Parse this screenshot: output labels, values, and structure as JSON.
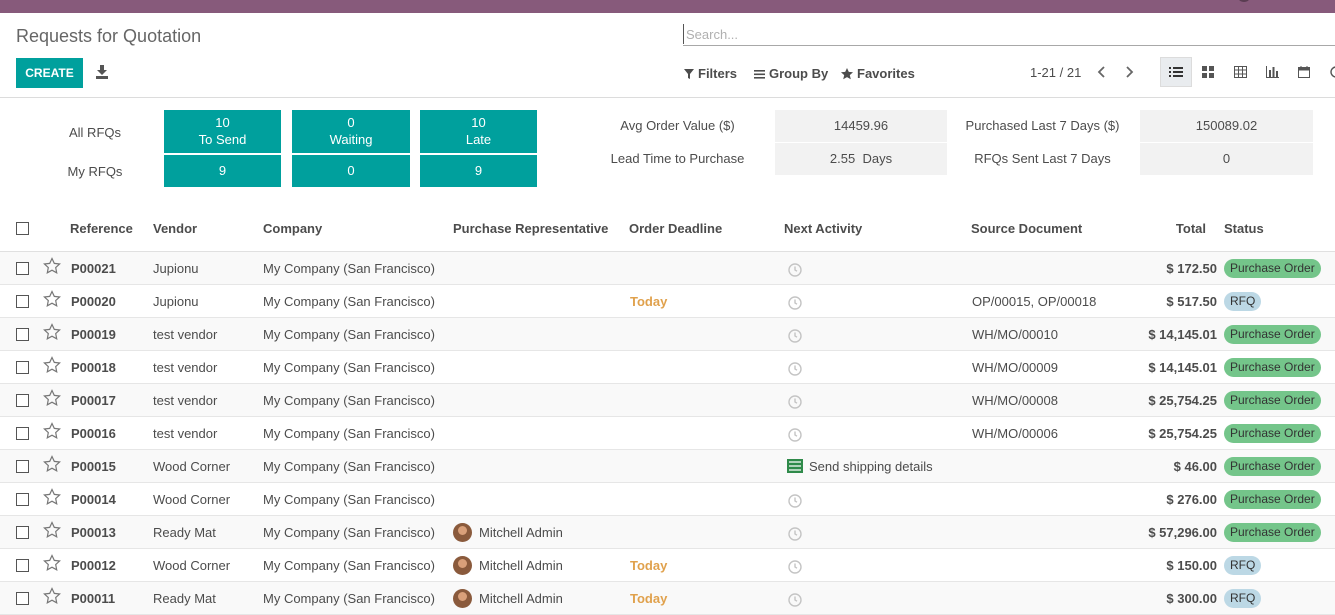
{
  "page": {
    "title": "Requests for Quotation"
  },
  "colors": {
    "brand": "#875a7b",
    "primary": "#00a09d",
    "today": "#e0a14c",
    "po_badge": "#74c58a",
    "rfq_badge": "#bcd8e5"
  },
  "search": {
    "placeholder": "Search..."
  },
  "toolbar": {
    "create_label": "CREATE",
    "filters_label": "Filters",
    "groupby_label": "Group By",
    "favorites_label": "Favorites"
  },
  "pager": {
    "value": "1-21 / 21"
  },
  "views": [
    "list-view-icon",
    "kanban-view-icon",
    "pivot-view-icon",
    "graph-view-icon",
    "calendar-view-icon",
    "activity-view-icon"
  ],
  "dashboard": {
    "all_rfqs_label": "All RFQs",
    "my_rfqs_label": "My RFQs",
    "tiles": [
      {
        "all": "10",
        "label": "To Send",
        "mine": "9"
      },
      {
        "all": "0",
        "label": "Waiting",
        "mine": "0"
      },
      {
        "all": "10",
        "label": "Late",
        "mine": "9"
      }
    ],
    "stats": {
      "avg_order_label": "Avg Order Value ($)",
      "avg_order_value": "14459.96",
      "lead_time_label": "Lead Time to Purchase",
      "lead_time_value": "2.55  Days",
      "purchased_label": "Purchased Last 7 Days ($)",
      "purchased_value": "150089.02",
      "rfqs_sent_label": "RFQs Sent Last 7 Days",
      "rfqs_sent_value": "0"
    }
  },
  "table": {
    "columns": {
      "reference": "Reference",
      "vendor": "Vendor",
      "company": "Company",
      "rep": "Purchase Representative",
      "deadline": "Order Deadline",
      "activity": "Next Activity",
      "source": "Source Document",
      "total": "Total",
      "status": "Status"
    },
    "rows": [
      {
        "ref": "P00021",
        "vendor": "Jupionu",
        "company": "My Company (San Francisco)",
        "rep": "",
        "deadline": "",
        "activity": "",
        "source": "",
        "total": "$ 172.50",
        "status": "Purchase Order"
      },
      {
        "ref": "P00020",
        "vendor": "Jupionu",
        "company": "My Company (San Francisco)",
        "rep": "",
        "deadline": "Today",
        "activity": "",
        "source": "OP/00015, OP/00018",
        "total": "$ 517.50",
        "status": "RFQ"
      },
      {
        "ref": "P00019",
        "vendor": "test vendor",
        "company": "My Company (San Francisco)",
        "rep": "",
        "deadline": "",
        "activity": "",
        "source": "WH/MO/00010",
        "total": "$ 14,145.01",
        "status": "Purchase Order"
      },
      {
        "ref": "P00018",
        "vendor": "test vendor",
        "company": "My Company (San Francisco)",
        "rep": "",
        "deadline": "",
        "activity": "",
        "source": "WH/MO/00009",
        "total": "$ 14,145.01",
        "status": "Purchase Order"
      },
      {
        "ref": "P00017",
        "vendor": "test vendor",
        "company": "My Company (San Francisco)",
        "rep": "",
        "deadline": "",
        "activity": "",
        "source": "WH/MO/00008",
        "total": "$ 25,754.25",
        "status": "Purchase Order"
      },
      {
        "ref": "P00016",
        "vendor": "test vendor",
        "company": "My Company (San Francisco)",
        "rep": "",
        "deadline": "",
        "activity": "",
        "source": "WH/MO/00006",
        "total": "$ 25,754.25",
        "status": "Purchase Order"
      },
      {
        "ref": "P00015",
        "vendor": "Wood Corner",
        "company": "My Company (San Francisco)",
        "rep": "",
        "deadline": "",
        "activity": "Send shipping details",
        "source": "",
        "total": "$ 46.00",
        "status": "Purchase Order"
      },
      {
        "ref": "P00014",
        "vendor": "Wood Corner",
        "company": "My Company (San Francisco)",
        "rep": "",
        "deadline": "",
        "activity": "",
        "source": "",
        "total": "$ 276.00",
        "status": "Purchase Order"
      },
      {
        "ref": "P00013",
        "vendor": "Ready Mat",
        "company": "My Company (San Francisco)",
        "rep": "Mitchell Admin",
        "deadline": "",
        "activity": "",
        "source": "",
        "total": "$ 57,296.00",
        "status": "Purchase Order"
      },
      {
        "ref": "P00012",
        "vendor": "Wood Corner",
        "company": "My Company (San Francisco)",
        "rep": "Mitchell Admin",
        "deadline": "Today",
        "activity": "",
        "source": "",
        "total": "$ 150.00",
        "status": "RFQ"
      },
      {
        "ref": "P00011",
        "vendor": "Ready Mat",
        "company": "My Company (San Francisco)",
        "rep": "Mitchell Admin",
        "deadline": "Today",
        "activity": "",
        "source": "",
        "total": "$ 300.00",
        "status": "RFQ"
      }
    ]
  }
}
